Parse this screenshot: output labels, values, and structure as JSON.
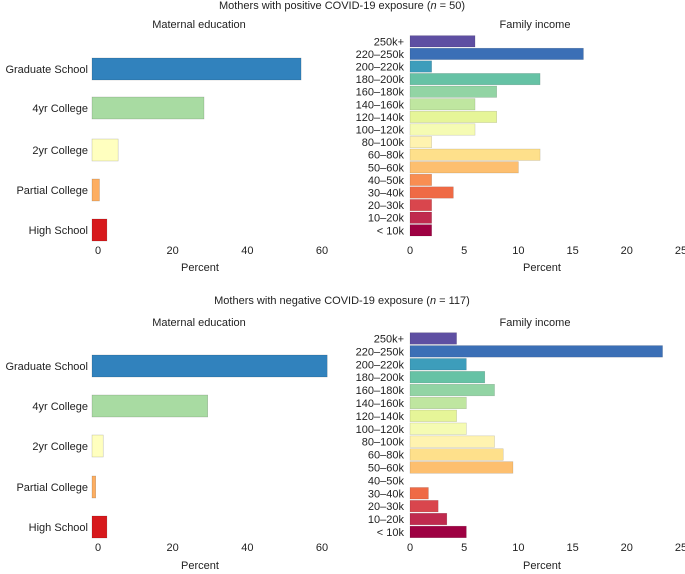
{
  "chart_data": [
    {
      "type": "bar",
      "panel_title": "Mothers with positive COVID-19 exposure (",
      "panel_n_var": "n",
      "panel_n_rest": " = 50)",
      "charts": [
        {
          "type": "bar",
          "orientation": "horizontal",
          "title": "Maternal education",
          "xlabel": "Percent",
          "xlim": [
            0,
            60
          ],
          "xticks": [
            0,
            20,
            40,
            60
          ],
          "categories": [
            "Graduate School",
            "4yr College",
            "2yr College",
            "Partial College",
            "High School"
          ],
          "values": [
            56,
            30,
            7,
            2,
            4
          ],
          "colors": [
            "#3182bd",
            "#a8dba2",
            "#ffffbf",
            "#fdae61",
            "#d7191c"
          ]
        },
        {
          "type": "bar",
          "orientation": "horizontal",
          "title": "Family income",
          "xlabel": "Percent",
          "xlim": [
            0,
            25
          ],
          "xticks": [
            0,
            5,
            10,
            15,
            20,
            25
          ],
          "categories": [
            "250k+",
            "220–250k",
            "200–220k",
            "180–200k",
            "160–180k",
            "140–160k",
            "120–140k",
            "100–120k",
            "80–100k",
            "60–80k",
            "50–60k",
            "40–50k",
            "30–40k",
            "20–30k",
            "10–20k",
            "< 10k"
          ],
          "values": [
            6,
            16,
            2,
            12,
            8,
            6,
            8,
            6,
            2,
            12,
            10,
            2,
            4,
            2,
            2,
            2
          ],
          "colors": [
            "#5e4fa2",
            "#3b6fb6",
            "#3d9dbb",
            "#66c2a5",
            "#92d4a4",
            "#bfe6a0",
            "#e6f598",
            "#f5fbb3",
            "#fff3b0",
            "#fee08b",
            "#fdbf6f",
            "#f98e52",
            "#ef6a45",
            "#d9464d",
            "#c02a4e",
            "#9e0142"
          ]
        }
      ]
    },
    {
      "type": "bar",
      "panel_title": "Mothers with negative COVID-19 exposure (",
      "panel_n_var": "n",
      "panel_n_rest": " = 117)",
      "charts": [
        {
          "type": "bar",
          "orientation": "horizontal",
          "title": "Maternal education",
          "xlabel": "Percent",
          "xlim": [
            0,
            60
          ],
          "xticks": [
            0,
            20,
            40,
            60
          ],
          "categories": [
            "Graduate School",
            "4yr College",
            "2yr College",
            "Partial College",
            "High School"
          ],
          "values": [
            63,
            31,
            3,
            1,
            4
          ],
          "colors": [
            "#3182bd",
            "#a8dba2",
            "#ffffbf",
            "#fdae61",
            "#d7191c"
          ]
        },
        {
          "type": "bar",
          "orientation": "horizontal",
          "title": "Family income",
          "xlabel": "Percent",
          "xlim": [
            0,
            25
          ],
          "xticks": [
            0,
            5,
            10,
            15,
            20,
            25
          ],
          "categories": [
            "250k+",
            "220–250k",
            "200–220k",
            "180–200k",
            "160–180k",
            "140–160k",
            "120–140k",
            "100–120k",
            "80–100k",
            "60–80k",
            "50–60k",
            "40–50k",
            "30–40k",
            "20–30k",
            "10–20k",
            "< 10k"
          ],
          "values": [
            4.3,
            23.3,
            5.2,
            6.9,
            7.8,
            5.2,
            4.3,
            5.2,
            7.8,
            8.6,
            9.5,
            0,
            1.7,
            2.6,
            3.4,
            5.2
          ],
          "colors": [
            "#5e4fa2",
            "#3b6fb6",
            "#3d9dbb",
            "#66c2a5",
            "#92d4a4",
            "#bfe6a0",
            "#e6f598",
            "#f5fbb3",
            "#fff3b0",
            "#fee08b",
            "#fdbf6f",
            "#f98e52",
            "#ef6a45",
            "#d9464d",
            "#c02a4e",
            "#9e0142"
          ]
        }
      ]
    }
  ]
}
